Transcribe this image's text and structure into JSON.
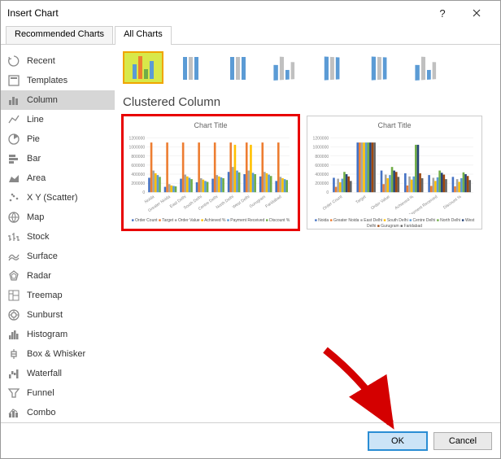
{
  "window": {
    "title": "Insert Chart"
  },
  "tabs": {
    "recommended": "Recommended Charts",
    "all": "All Charts"
  },
  "sidebar": {
    "items": [
      {
        "label": "Recent",
        "icon": "recent"
      },
      {
        "label": "Templates",
        "icon": "templates"
      },
      {
        "label": "Column",
        "icon": "column"
      },
      {
        "label": "Line",
        "icon": "line"
      },
      {
        "label": "Pie",
        "icon": "pie"
      },
      {
        "label": "Bar",
        "icon": "bar"
      },
      {
        "label": "Area",
        "icon": "area"
      },
      {
        "label": "X Y (Scatter)",
        "icon": "scatter"
      },
      {
        "label": "Map",
        "icon": "map"
      },
      {
        "label": "Stock",
        "icon": "stock"
      },
      {
        "label": "Surface",
        "icon": "surface"
      },
      {
        "label": "Radar",
        "icon": "radar"
      },
      {
        "label": "Treemap",
        "icon": "treemap"
      },
      {
        "label": "Sunburst",
        "icon": "sunburst"
      },
      {
        "label": "Histogram",
        "icon": "histogram"
      },
      {
        "label": "Box & Whisker",
        "icon": "box"
      },
      {
        "label": "Waterfall",
        "icon": "waterfall"
      },
      {
        "label": "Funnel",
        "icon": "funnel"
      },
      {
        "label": "Combo",
        "icon": "combo"
      }
    ],
    "selected_index": 2
  },
  "subtypes": {
    "selected_index": 0,
    "thumbs": [
      {
        "kind": "clustered",
        "colored": true
      },
      {
        "kind": "stacked",
        "colored": false
      },
      {
        "kind": "stacked100",
        "colored": false
      },
      {
        "kind": "clustered3d",
        "colored": false
      },
      {
        "kind": "stacked3d",
        "colored": false
      },
      {
        "kind": "stacked100_3d",
        "colored": false
      },
      {
        "kind": "column3d",
        "colored": false
      }
    ]
  },
  "chart_name": "Clustered Column",
  "preview1": {
    "title": "Chart Title",
    "type": "bar",
    "ymax": 1200000,
    "yticks": [
      0,
      200000,
      400000,
      600000,
      800000,
      1000000,
      1200000
    ],
    "categories": [
      "Noida",
      "Greater Noida",
      "East Delhi",
      "South Delhi",
      "Centre Delhi",
      "North Delhi",
      "West Delhi",
      "Gurugram",
      "Faridabad"
    ],
    "series": [
      {
        "name": "Order Count",
        "color": "#4472c4",
        "values": [
          320000,
          120000,
          300000,
          220000,
          300000,
          450000,
          400000,
          350000,
          250000
        ]
      },
      {
        "name": "Target",
        "color": "#ed7d31",
        "values": [
          1100000,
          1100000,
          1100000,
          1100000,
          1100000,
          1100000,
          1100000,
          1100000,
          1100000
        ]
      },
      {
        "name": "Order Value",
        "color": "#a5a5a5",
        "values": [
          480000,
          180000,
          390000,
          310000,
          380000,
          560000,
          480000,
          450000,
          340000
        ]
      },
      {
        "name": "Achieved %",
        "color": "#ffc000",
        "values": [
          420000,
          150000,
          350000,
          280000,
          350000,
          1050000,
          1050000,
          420000,
          310000
        ]
      },
      {
        "name": "Payment Received",
        "color": "#5b9bd5",
        "values": [
          380000,
          140000,
          320000,
          250000,
          330000,
          480000,
          430000,
          390000,
          290000
        ]
      },
      {
        "name": "Discount %",
        "color": "#70ad47",
        "values": [
          340000,
          130000,
          290000,
          230000,
          310000,
          440000,
          400000,
          360000,
          270000
        ]
      }
    ],
    "grid_color": "#e8e8e8",
    "label_fontsize": 5
  },
  "preview2": {
    "title": "Chart Title",
    "type": "bar",
    "ymax": 1200000,
    "yticks": [
      0,
      200000,
      400000,
      600000,
      800000,
      1000000,
      1200000
    ],
    "categories": [
      "Order Count",
      "Target",
      "Order Value",
      "Achieved %",
      "Payment Received",
      "Discount %"
    ],
    "series": [
      {
        "name": "Noida",
        "color": "#4472c4",
        "values": [
          320000,
          1100000,
          480000,
          420000,
          380000,
          340000
        ]
      },
      {
        "name": "Greater Noida",
        "color": "#ed7d31",
        "values": [
          120000,
          1100000,
          180000,
          150000,
          140000,
          130000
        ]
      },
      {
        "name": "East Delhi",
        "color": "#a5a5a5",
        "values": [
          300000,
          1100000,
          390000,
          350000,
          320000,
          290000
        ]
      },
      {
        "name": "South Delhi",
        "color": "#ffc000",
        "values": [
          220000,
          1100000,
          310000,
          280000,
          250000,
          230000
        ]
      },
      {
        "name": "Centre Delhi",
        "color": "#5b9bd5",
        "values": [
          300000,
          1100000,
          380000,
          350000,
          330000,
          310000
        ]
      },
      {
        "name": "North Delhi",
        "color": "#70ad47",
        "values": [
          450000,
          1100000,
          560000,
          1050000,
          480000,
          440000
        ]
      },
      {
        "name": "West Delhi",
        "color": "#264478",
        "values": [
          400000,
          1100000,
          480000,
          1050000,
          430000,
          400000
        ]
      },
      {
        "name": "Gurugram",
        "color": "#9e480e",
        "values": [
          350000,
          1100000,
          450000,
          420000,
          390000,
          360000
        ]
      },
      {
        "name": "Faridabad",
        "color": "#636363",
        "values": [
          250000,
          1100000,
          340000,
          310000,
          290000,
          270000
        ]
      }
    ],
    "grid_color": "#e8e8e8",
    "label_fontsize": 5
  },
  "footer": {
    "ok": "OK",
    "cancel": "Cancel"
  },
  "arrow_color": "#d40000"
}
